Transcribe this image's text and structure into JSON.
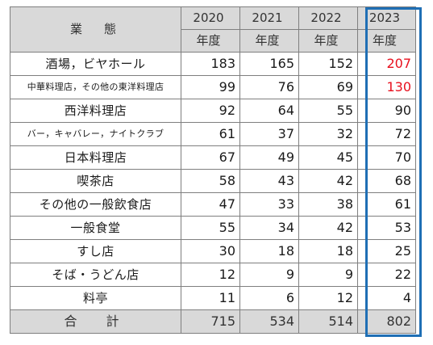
{
  "header": {
    "category_label": "業　態",
    "years": [
      "2020",
      "2021",
      "2022",
      "2023"
    ],
    "year_suffix": "年度"
  },
  "rows": [
    {
      "category": "酒場，ビヤホール",
      "values": [
        "183",
        "165",
        "152",
        "207"
      ],
      "highlight_last": true
    },
    {
      "category": "中華料理店，その他の東洋料理店",
      "values": [
        "99",
        "76",
        "69",
        "130"
      ],
      "highlight_last": true
    },
    {
      "category": "西洋料理店",
      "values": [
        "92",
        "64",
        "55",
        "90"
      ]
    },
    {
      "category": "バー，キャバレー，ナイトクラブ",
      "values": [
        "61",
        "37",
        "32",
        "72"
      ]
    },
    {
      "category": "日本料理店",
      "values": [
        "67",
        "49",
        "45",
        "70"
      ]
    },
    {
      "category": "喫茶店",
      "values": [
        "58",
        "43",
        "42",
        "68"
      ]
    },
    {
      "category": "その他の一般飲食店",
      "values": [
        "47",
        "33",
        "38",
        "61"
      ]
    },
    {
      "category": "一般食堂",
      "values": [
        "55",
        "34",
        "42",
        "53"
      ]
    },
    {
      "category": "すし店",
      "values": [
        "30",
        "18",
        "18",
        "25"
      ]
    },
    {
      "category": "そば・うどん店",
      "values": [
        "12",
        "9",
        "9",
        "22"
      ]
    },
    {
      "category": "料亭",
      "values": [
        "11",
        "6",
        "12",
        "4"
      ]
    }
  ],
  "total": {
    "label": "合　計",
    "values": [
      "715",
      "534",
      "514",
      "802"
    ]
  },
  "colors": {
    "header_bg": "#d9d9d9",
    "highlight_text": "#e8101e",
    "highlight_border": "#1f6fb5",
    "grid": "#7f7f7f"
  }
}
